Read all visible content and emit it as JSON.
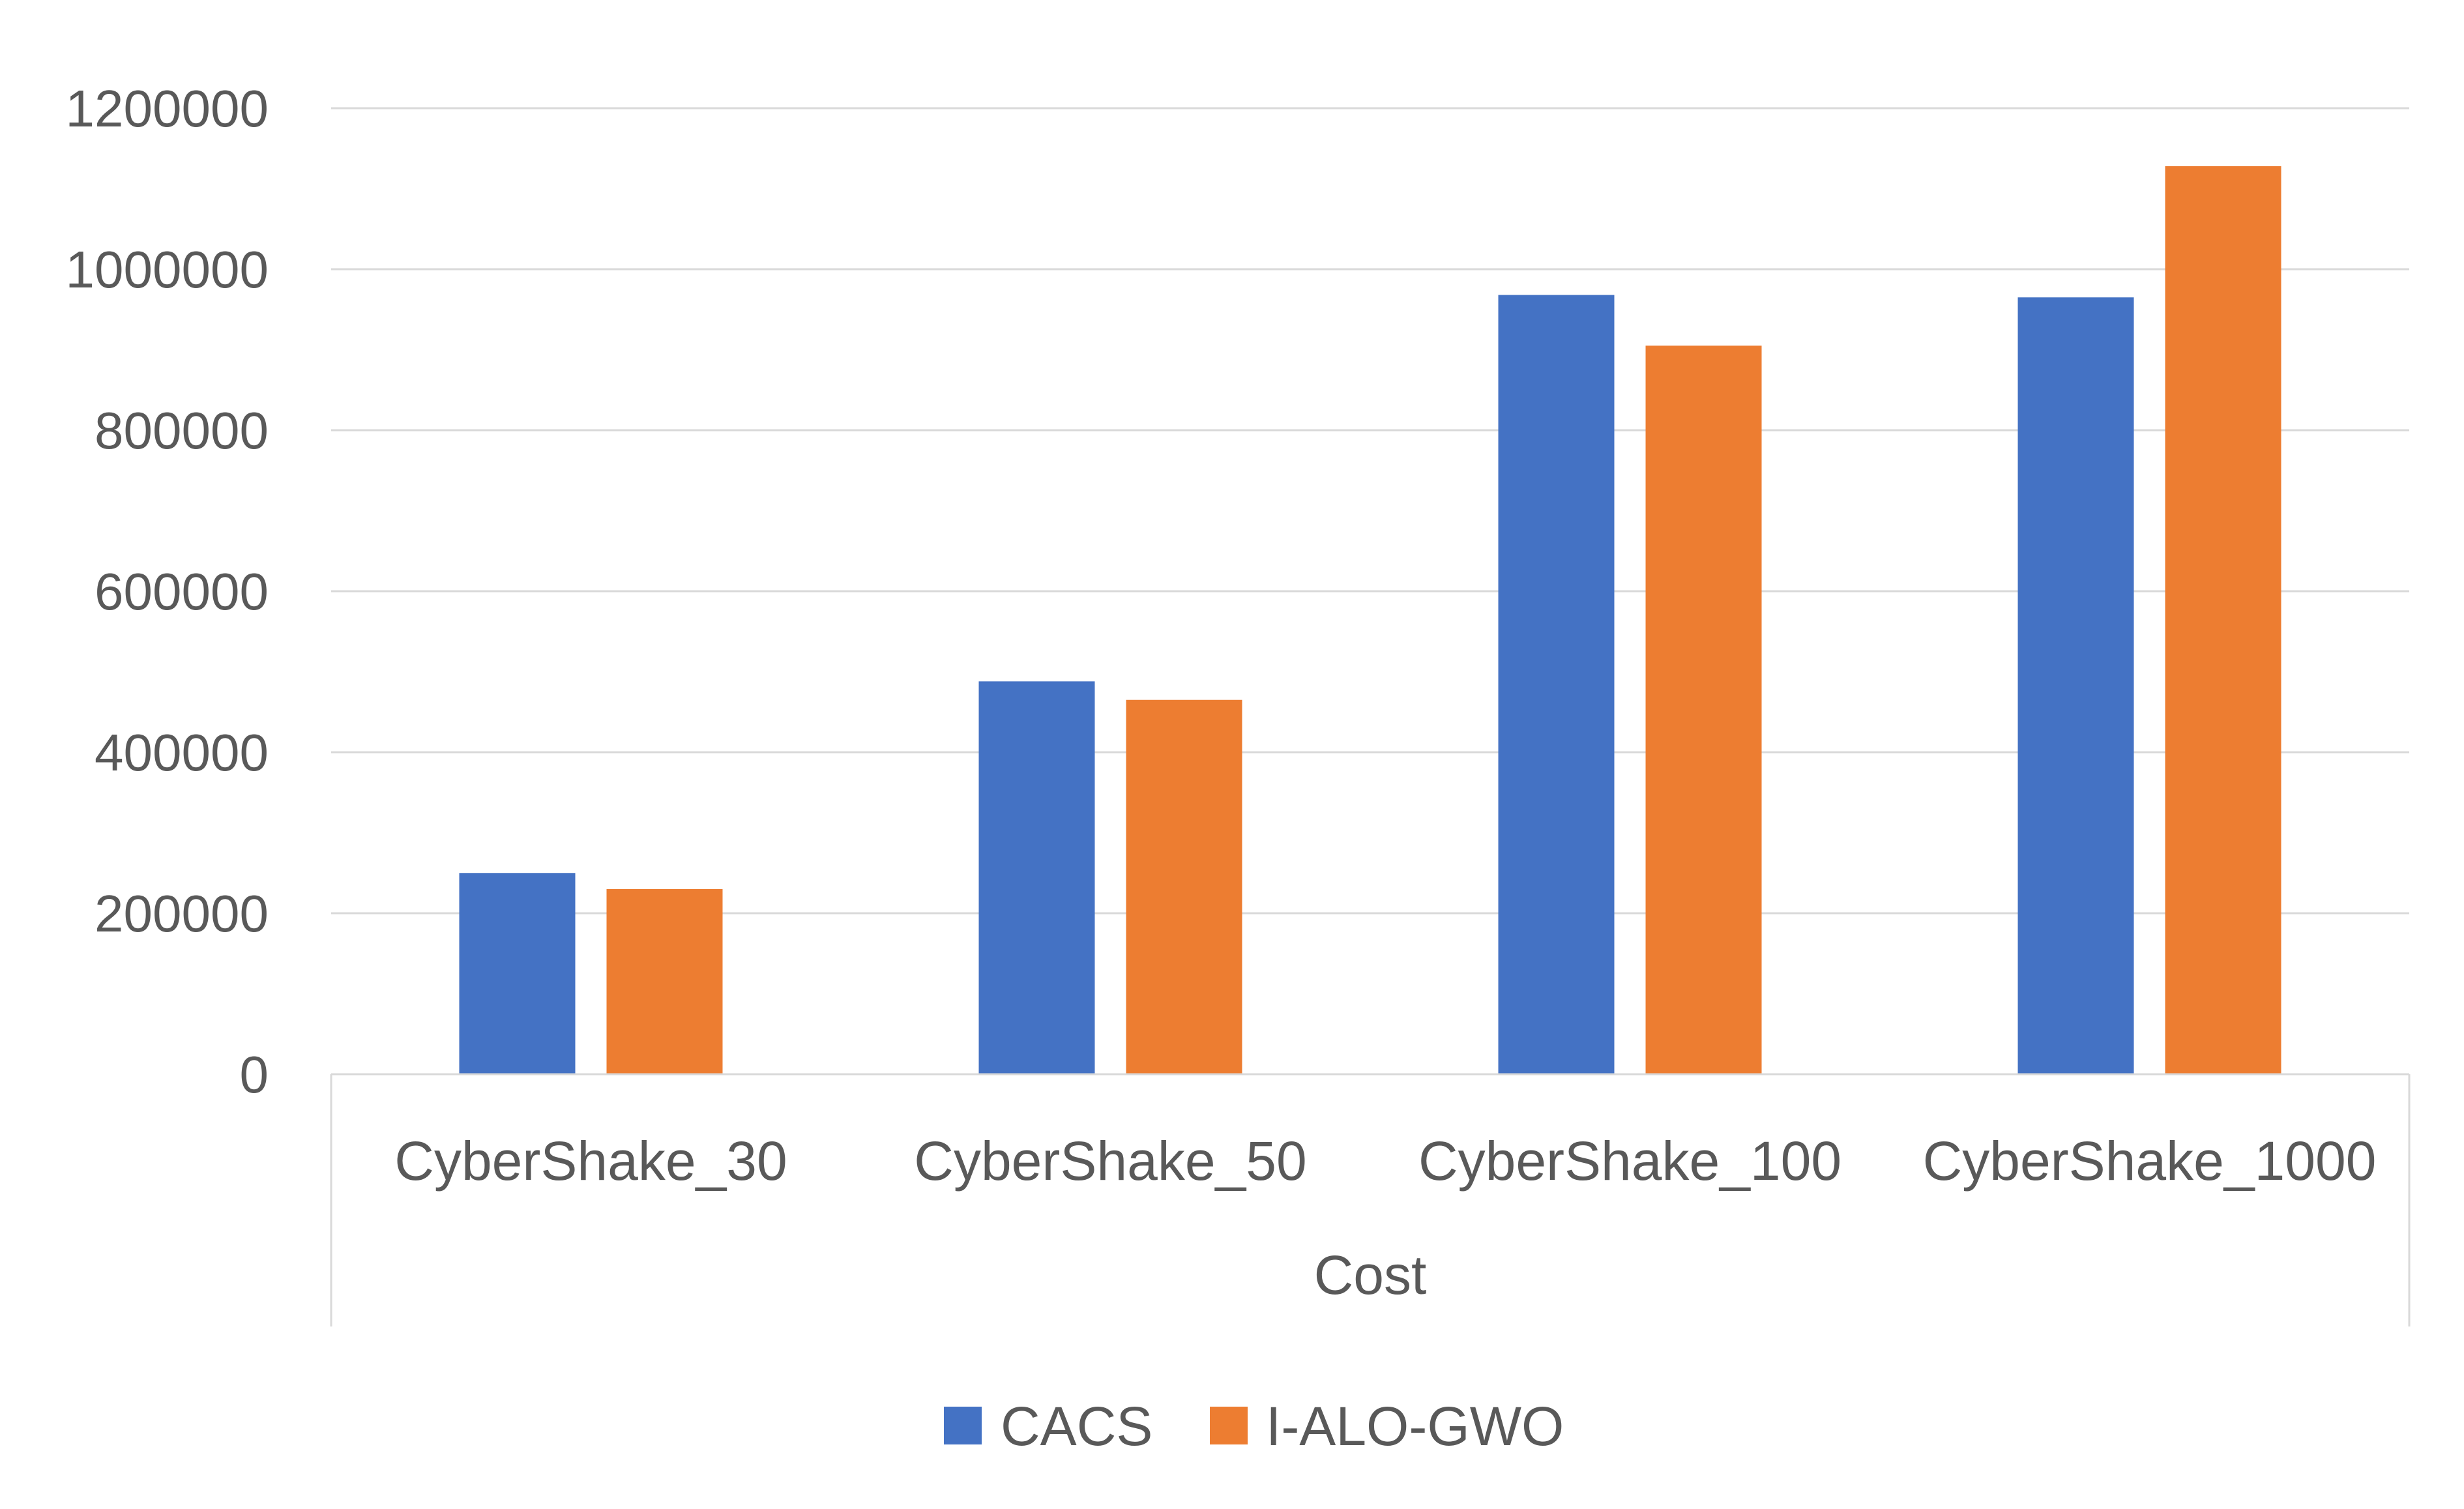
{
  "chart_data": {
    "type": "bar",
    "categories": [
      "CyberShake_30",
      "CyberShake_50",
      "CyberShake_100",
      "CyberShake_1000"
    ],
    "group_label": "Cost",
    "series": [
      {
        "name": "CACS",
        "color": "#4472C4",
        "values": [
          250000,
          488000,
          968000,
          965000
        ]
      },
      {
        "name": "I-ALO-GWO",
        "color": "#ED7D31",
        "values": [
          230000,
          465000,
          905000,
          1128000
        ]
      }
    ],
    "ylim": [
      0,
      1200000
    ],
    "yticks": [
      0,
      200000,
      400000,
      600000,
      800000,
      1000000,
      1200000
    ],
    "grid": true,
    "legend_position": "bottom"
  }
}
